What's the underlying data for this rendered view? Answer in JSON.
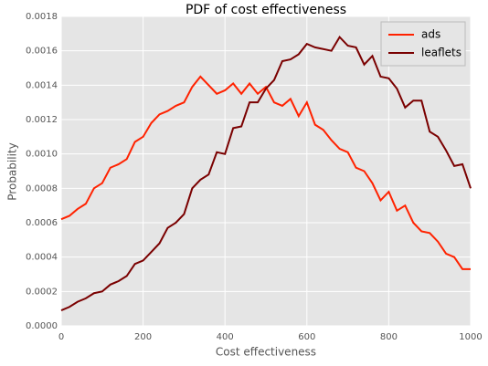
{
  "chart_data": {
    "type": "line",
    "title": "PDF of cost effectiveness",
    "xlabel": "Cost effectiveness",
    "ylabel": "Probability",
    "x": [
      0,
      20,
      40,
      60,
      80,
      100,
      120,
      140,
      160,
      180,
      200,
      220,
      240,
      260,
      280,
      300,
      320,
      340,
      360,
      380,
      400,
      420,
      440,
      460,
      480,
      500,
      520,
      540,
      560,
      580,
      600,
      620,
      640,
      660,
      680,
      700,
      720,
      740,
      760,
      780,
      800,
      820,
      840,
      860,
      880,
      900,
      920,
      940,
      960,
      980,
      1000
    ],
    "series": [
      {
        "name": "ads",
        "color": "#ff2200",
        "values": [
          0.00062,
          0.00064,
          0.00068,
          0.00071,
          0.0008,
          0.00083,
          0.00092,
          0.00094,
          0.00097,
          0.00107,
          0.0011,
          0.00118,
          0.00123,
          0.00125,
          0.00128,
          0.0013,
          0.00139,
          0.00145,
          0.0014,
          0.00135,
          0.00137,
          0.00141,
          0.00135,
          0.00141,
          0.00135,
          0.00139,
          0.0013,
          0.00128,
          0.00132,
          0.00122,
          0.0013,
          0.00117,
          0.00114,
          0.00108,
          0.00103,
          0.00101,
          0.00092,
          0.0009,
          0.00083,
          0.00073,
          0.00078,
          0.00067,
          0.0007,
          0.0006,
          0.00055,
          0.00054,
          0.00049,
          0.00042,
          0.0004,
          0.00033,
          0.00033
        ]
      },
      {
        "name": "leaflets",
        "color": "#7a0000",
        "values": [
          9e-05,
          0.00011,
          0.00014,
          0.00016,
          0.00019,
          0.0002,
          0.00024,
          0.00026,
          0.00029,
          0.00036,
          0.00038,
          0.00043,
          0.00048,
          0.00057,
          0.0006,
          0.00065,
          0.0008,
          0.00085,
          0.00088,
          0.00101,
          0.001,
          0.00115,
          0.00116,
          0.0013,
          0.0013,
          0.00138,
          0.00143,
          0.00154,
          0.00155,
          0.00158,
          0.00164,
          0.00162,
          0.00161,
          0.0016,
          0.00168,
          0.00163,
          0.00162,
          0.00152,
          0.00157,
          0.00145,
          0.00144,
          0.00138,
          0.00127,
          0.00131,
          0.00131,
          0.00113,
          0.0011,
          0.00102,
          0.00093,
          0.00094,
          0.0008
        ]
      }
    ],
    "xlim": [
      0,
      1000
    ],
    "xticks": [
      0,
      200,
      400,
      600,
      800,
      1000
    ],
    "ylim": [
      0,
      0.0018
    ],
    "yticks": [
      {
        "value": 0,
        "label": "0.0000"
      },
      {
        "value": 0.0002,
        "label": "0.0002"
      },
      {
        "value": 0.0004,
        "label": "0.0004"
      },
      {
        "value": 0.0006,
        "label": "0.0006"
      },
      {
        "value": 0.0008,
        "label": "0.0008"
      },
      {
        "value": 0.001,
        "label": "0.0010"
      },
      {
        "value": 0.0012,
        "label": "0.0012"
      },
      {
        "value": 0.0014,
        "label": "0.0014"
      },
      {
        "value": 0.0016,
        "label": "0.0016"
      },
      {
        "value": 0.0018,
        "label": "0.0018"
      }
    ],
    "grid": true,
    "legend": "upper right"
  }
}
